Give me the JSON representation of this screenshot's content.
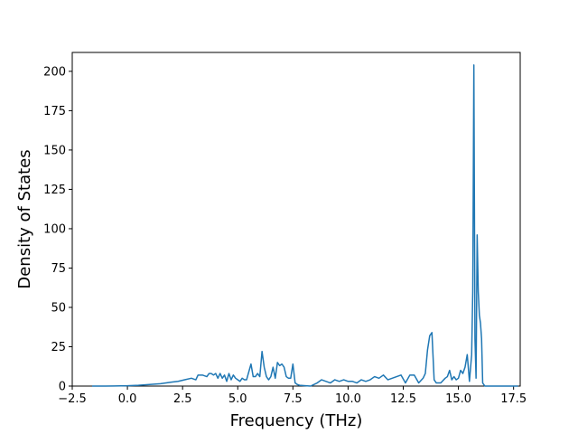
{
  "chart_data": {
    "type": "line",
    "title": "",
    "xlabel": "Frequency (THz)",
    "ylabel": "Density of States",
    "xlim": [
      -2.5,
      17.8
    ],
    "ylim": [
      0,
      212
    ],
    "xticks": [
      -2.5,
      0.0,
      2.5,
      5.0,
      7.5,
      10.0,
      12.5,
      15.0,
      17.5
    ],
    "xtick_labels": [
      "−2.5",
      "0.0",
      "2.5",
      "5.0",
      "7.5",
      "10.0",
      "12.5",
      "15.0",
      "17.5"
    ],
    "yticks": [
      0,
      25,
      50,
      75,
      100,
      125,
      150,
      175,
      200
    ],
    "ytick_labels": [
      "0",
      "25",
      "50",
      "75",
      "100",
      "125",
      "150",
      "175",
      "200"
    ],
    "grid": false,
    "series": [
      {
        "color": "#1f77b4",
        "x": [
          -1.6,
          -1.0,
          0.0,
          0.5,
          1.0,
          1.5,
          2.0,
          2.3,
          2.6,
          2.9,
          3.1,
          3.2,
          3.4,
          3.6,
          3.7,
          3.8,
          3.9,
          4.0,
          4.1,
          4.2,
          4.3,
          4.4,
          4.5,
          4.6,
          4.7,
          4.8,
          4.9,
          5.0,
          5.1,
          5.2,
          5.3,
          5.4,
          5.5,
          5.6,
          5.7,
          5.8,
          5.9,
          6.0,
          6.1,
          6.2,
          6.3,
          6.4,
          6.5,
          6.6,
          6.7,
          6.8,
          6.9,
          7.0,
          7.1,
          7.2,
          7.3,
          7.4,
          7.5,
          7.6,
          7.7,
          7.8,
          8.0,
          8.3,
          8.6,
          8.8,
          9.0,
          9.2,
          9.4,
          9.6,
          9.8,
          10.0,
          10.2,
          10.4,
          10.6,
          10.8,
          11.0,
          11.2,
          11.4,
          11.6,
          11.8,
          12.0,
          12.2,
          12.4,
          12.6,
          12.8,
          13.0,
          13.2,
          13.4,
          13.5,
          13.6,
          13.7,
          13.8,
          13.9,
          14.0,
          14.2,
          14.4,
          14.5,
          14.6,
          14.7,
          14.8,
          14.9,
          15.0,
          15.1,
          15.2,
          15.3,
          15.4,
          15.5,
          15.6,
          15.65,
          15.7,
          15.75,
          15.8,
          15.85,
          15.9,
          15.95,
          16.0,
          16.05,
          16.1,
          16.2,
          16.3,
          16.5,
          17.0,
          17.5,
          17.7
        ],
        "y": [
          0,
          0,
          0.2,
          0.5,
          1,
          1.5,
          2.5,
          3,
          4,
          5,
          4,
          7,
          7,
          6,
          8,
          8,
          7,
          8,
          5,
          8,
          5,
          7,
          3,
          8,
          4,
          7,
          5,
          4,
          3,
          5,
          4,
          4,
          9,
          14,
          6,
          6,
          8,
          6,
          22,
          12,
          6,
          4,
          6,
          12,
          5,
          15,
          13,
          14,
          12,
          6,
          5,
          5,
          14,
          2,
          1,
          0.5,
          0.3,
          0,
          2,
          4,
          3,
          2,
          4,
          3,
          4,
          3,
          3,
          2,
          4,
          3,
          4,
          6,
          5,
          7,
          4,
          5,
          6,
          7,
          2,
          7,
          7,
          2,
          5,
          8,
          23,
          32,
          34,
          4,
          2,
          2,
          5,
          6,
          10,
          4,
          6,
          4,
          5,
          10,
          8,
          12,
          20,
          3,
          20,
          60,
          204,
          30,
          5,
          96,
          60,
          45,
          40,
          30,
          2,
          0,
          0,
          0,
          0,
          0,
          0
        ]
      }
    ]
  }
}
